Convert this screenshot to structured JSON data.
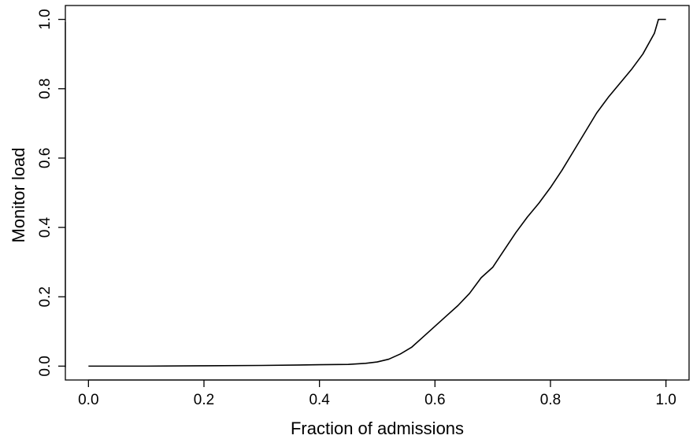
{
  "chart_data": {
    "type": "line",
    "title": "",
    "xlabel": "Fraction of admissions",
    "ylabel": "Monitor load",
    "xlim": [
      -0.04,
      1.04
    ],
    "ylim": [
      -0.04,
      1.04
    ],
    "xticks": [
      {
        "value": 0.0,
        "label": "0.0"
      },
      {
        "value": 0.2,
        "label": "0.2"
      },
      {
        "value": 0.4,
        "label": "0.4"
      },
      {
        "value": 0.6,
        "label": "0.6"
      },
      {
        "value": 0.8,
        "label": "0.8"
      },
      {
        "value": 1.0,
        "label": "1.0"
      }
    ],
    "yticks": [
      {
        "value": 0.0,
        "label": "0.0"
      },
      {
        "value": 0.2,
        "label": "0.2"
      },
      {
        "value": 0.4,
        "label": "0.4"
      },
      {
        "value": 0.6,
        "label": "0.6"
      },
      {
        "value": 0.8,
        "label": "0.8"
      },
      {
        "value": 1.0,
        "label": "1.0"
      }
    ],
    "grid": false,
    "series": [
      {
        "color": "#000000",
        "points": [
          [
            0.0,
            0.0
          ],
          [
            0.1,
            0.0
          ],
          [
            0.2,
            0.001
          ],
          [
            0.3,
            0.002
          ],
          [
            0.4,
            0.004
          ],
          [
            0.45,
            0.005
          ],
          [
            0.48,
            0.008
          ],
          [
            0.5,
            0.012
          ],
          [
            0.52,
            0.02
          ],
          [
            0.54,
            0.035
          ],
          [
            0.56,
            0.055
          ],
          [
            0.58,
            0.085
          ],
          [
            0.6,
            0.115
          ],
          [
            0.62,
            0.145
          ],
          [
            0.64,
            0.175
          ],
          [
            0.66,
            0.21
          ],
          [
            0.68,
            0.255
          ],
          [
            0.7,
            0.285
          ],
          [
            0.72,
            0.335
          ],
          [
            0.74,
            0.385
          ],
          [
            0.76,
            0.43
          ],
          [
            0.78,
            0.47
          ],
          [
            0.8,
            0.515
          ],
          [
            0.82,
            0.565
          ],
          [
            0.84,
            0.62
          ],
          [
            0.86,
            0.675
          ],
          [
            0.88,
            0.73
          ],
          [
            0.9,
            0.775
          ],
          [
            0.92,
            0.815
          ],
          [
            0.94,
            0.855
          ],
          [
            0.96,
            0.9
          ],
          [
            0.98,
            0.96
          ],
          [
            0.987,
            1.0
          ],
          [
            1.0,
            1.0
          ]
        ]
      }
    ]
  }
}
